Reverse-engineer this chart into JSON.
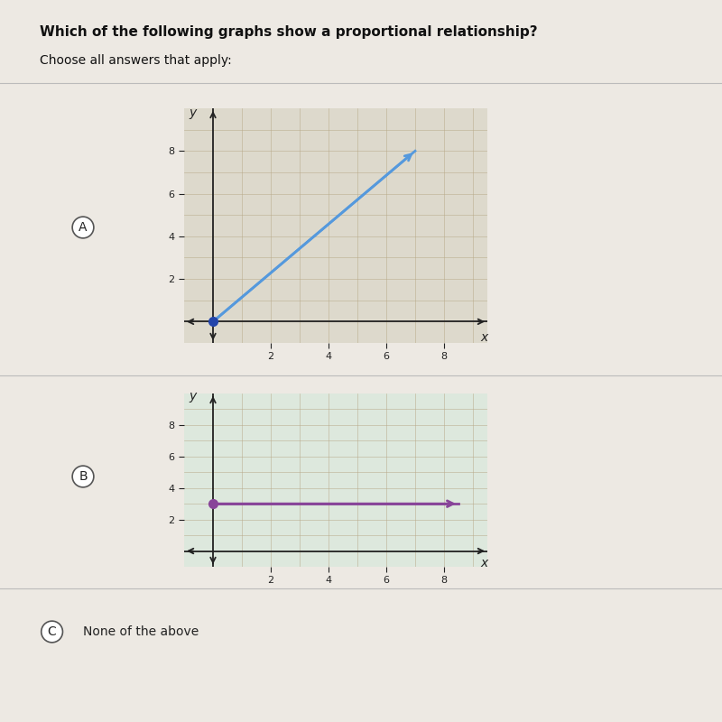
{
  "title": "Which of the following graphs show a proportional relationship?",
  "subtitle": "Choose all answers that apply:",
  "background_color": "#ede9e3",
  "graph_A_bg": "#ddd9cc",
  "graph_B_bg": "#dde8dd",
  "grid_color": "#b8a888",
  "axis_color": "#222222",
  "graph_A": {
    "label": "A",
    "line_x": [
      0,
      7
    ],
    "line_y": [
      0,
      8
    ],
    "line_color": "#5599dd",
    "dot_x": 0,
    "dot_y": 0,
    "dot_color": "#2244aa",
    "xlim": [
      -1,
      9.5
    ],
    "ylim": [
      -1,
      10
    ],
    "xticks": [
      2,
      4,
      6,
      8
    ],
    "yticks": [
      2,
      4,
      6,
      8
    ]
  },
  "graph_B": {
    "label": "B",
    "line_x": [
      0,
      8.5
    ],
    "line_y": [
      3,
      3
    ],
    "line_color": "#884499",
    "dot_x": 0,
    "dot_y": 3,
    "dot_color": "#884499",
    "xlim": [
      -1,
      9.5
    ],
    "ylim": [
      -1,
      10
    ],
    "xticks": [
      2,
      4,
      6,
      8
    ],
    "yticks": [
      2,
      4,
      6,
      8
    ]
  },
  "option_C_label": "C",
  "option_C_text": "None of the above",
  "title_fontsize": 11,
  "subtitle_fontsize": 10,
  "tick_fontsize": 8,
  "label_fontsize": 10,
  "circle_fontsize": 10
}
